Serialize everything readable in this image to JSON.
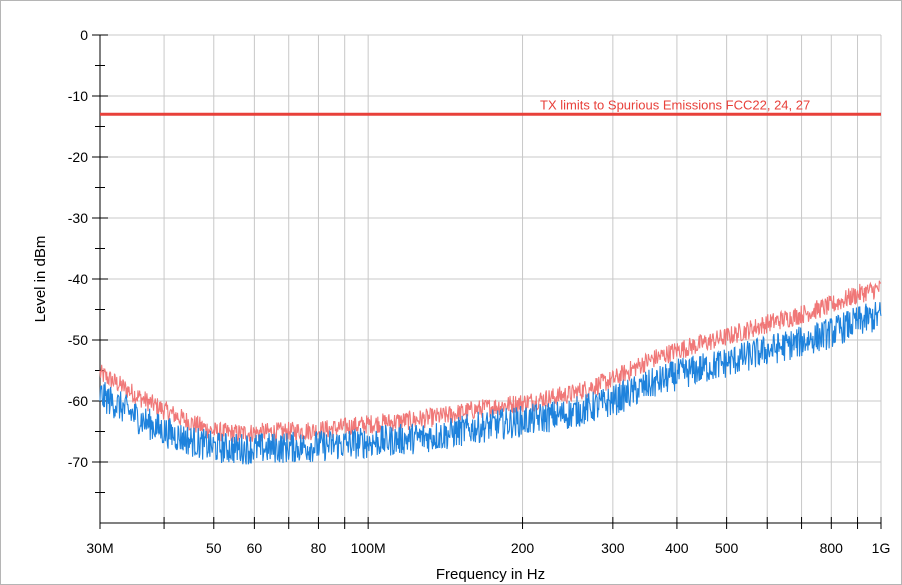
{
  "chart_data": {
    "type": "line",
    "xlabel": "Frequency in Hz",
    "ylabel": "Level in dBm",
    "x_scale": "log",
    "xlim": [
      30000000,
      1000000000
    ],
    "ylim": [
      -80,
      0
    ],
    "grid": true,
    "x_ticks": [
      {
        "value": 30000000,
        "label": "30M"
      },
      {
        "value": 50000000,
        "label": "50"
      },
      {
        "value": 60000000,
        "label": "60"
      },
      {
        "value": 80000000,
        "label": "80"
      },
      {
        "value": 100000000,
        "label": "100M"
      },
      {
        "value": 200000000,
        "label": "200"
      },
      {
        "value": 300000000,
        "label": "300"
      },
      {
        "value": 400000000,
        "label": "400"
      },
      {
        "value": 500000000,
        "label": "500"
      },
      {
        "value": 800000000,
        "label": "800"
      },
      {
        "value": 1000000000,
        "label": "1G"
      }
    ],
    "x_minor_ticks": [
      40000000,
      70000000,
      90000000,
      600000000,
      700000000,
      900000000
    ],
    "y_ticks": [
      {
        "value": 0,
        "label": "0"
      },
      {
        "value": -10,
        "label": "-10"
      },
      {
        "value": -20,
        "label": "-20"
      },
      {
        "value": -30,
        "label": "-30"
      },
      {
        "value": -40,
        "label": "-40"
      },
      {
        "value": -50,
        "label": "-50"
      },
      {
        "value": -60,
        "label": "-60"
      },
      {
        "value": -70,
        "label": "-70"
      }
    ],
    "y_minor_ticks": [
      -5,
      -15,
      -25,
      -35,
      -45,
      -55,
      -65,
      -75
    ],
    "limit_line": {
      "label": "TX limits to Spurious Emissions FCC22, 24, 27",
      "value": -13,
      "color": "#e8403a"
    },
    "series": [
      {
        "color": "#f07878",
        "x": [
          30000000,
          33000000,
          36000000,
          40000000,
          45000000,
          50000000,
          55000000,
          60000000,
          70000000,
          80000000,
          90000000,
          100000000,
          120000000,
          140000000,
          160000000,
          180000000,
          200000000,
          250000000,
          300000000,
          350000000,
          400000000,
          500000000,
          600000000,
          700000000,
          800000000,
          900000000,
          1000000000
        ],
        "y": [
          -55.5,
          -57.5,
          -59.5,
          -61.5,
          -63.5,
          -65,
          -65.3,
          -65.2,
          -65,
          -64.8,
          -64.3,
          -63.8,
          -63.2,
          -62.5,
          -61.5,
          -60.8,
          -60.3,
          -58.8,
          -56.5,
          -53.5,
          -51.7,
          -49.5,
          -47.3,
          -45.8,
          -44.3,
          -42.5,
          -41.5
        ]
      },
      {
        "color": "#1e82dc",
        "x": [
          30000000,
          33000000,
          36000000,
          40000000,
          45000000,
          50000000,
          55000000,
          60000000,
          70000000,
          80000000,
          90000000,
          100000000,
          120000000,
          140000000,
          160000000,
          180000000,
          200000000,
          250000000,
          300000000,
          350000000,
          400000000,
          500000000,
          600000000,
          700000000,
          800000000,
          900000000,
          1000000000
        ],
        "y": [
          -59,
          -61,
          -63,
          -65,
          -66.5,
          -67.6,
          -67.8,
          -67.8,
          -67.6,
          -67.4,
          -67.1,
          -66.8,
          -66.2,
          -65.6,
          -64.5,
          -63.8,
          -63.3,
          -62,
          -60,
          -57.5,
          -55.7,
          -53.7,
          -51.7,
          -50.3,
          -48.8,
          -47,
          -46
        ]
      }
    ]
  }
}
